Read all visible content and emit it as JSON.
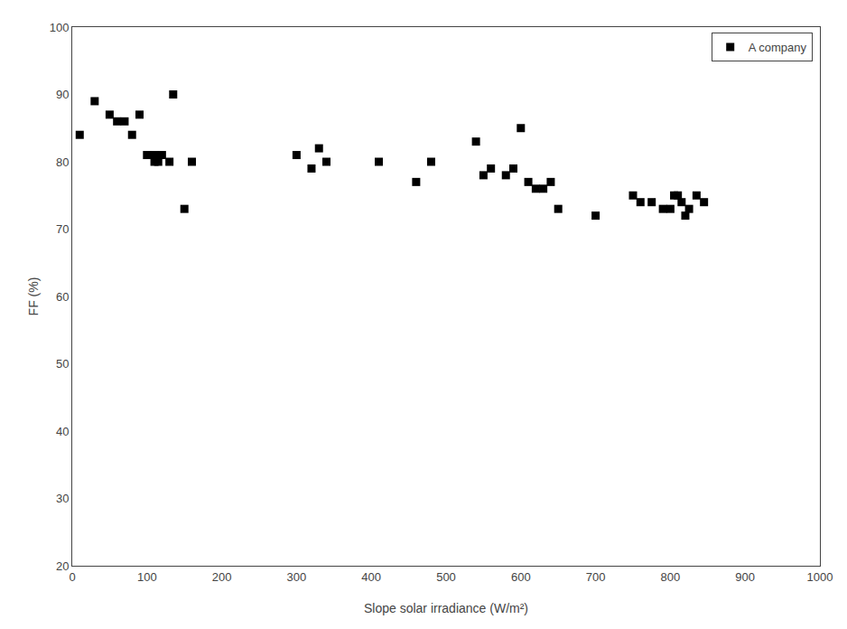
{
  "chart_data": {
    "type": "scatter",
    "xlabel": "Slope solar irradiance (W/m²)",
    "ylabel": "FF (%)",
    "x": [
      10,
      30,
      50,
      60,
      70,
      80,
      90,
      100,
      110,
      110,
      115,
      120,
      130,
      135,
      150,
      160,
      300,
      320,
      330,
      340,
      410,
      460,
      480,
      540,
      550,
      560,
      580,
      590,
      600,
      610,
      620,
      630,
      640,
      650,
      700,
      750,
      760,
      775,
      790,
      800,
      805,
      810,
      815,
      820,
      825,
      835,
      845
    ],
    "series": [
      {
        "name": "A company",
        "color": "black",
        "marker": "square",
        "values": [
          84,
          89,
          87,
          86,
          86,
          84,
          87,
          81,
          81,
          80,
          80,
          81,
          80,
          90,
          73,
          80,
          81,
          79,
          82,
          80,
          80,
          77,
          80,
          83,
          78,
          79,
          78,
          79,
          85,
          77,
          76,
          76,
          77,
          73,
          72,
          75,
          74,
          74,
          73,
          73,
          75,
          75,
          74,
          72,
          73,
          75,
          74
        ]
      }
    ],
    "xlim": [
      0,
      1000
    ],
    "ylim": [
      20,
      100
    ],
    "xticks": [
      0,
      100,
      200,
      300,
      400,
      500,
      600,
      700,
      800,
      900,
      1000
    ],
    "yticks": [
      20,
      30,
      40,
      50,
      60,
      70,
      80,
      90,
      100
    ],
    "grid": false,
    "legend": "upper right"
  }
}
